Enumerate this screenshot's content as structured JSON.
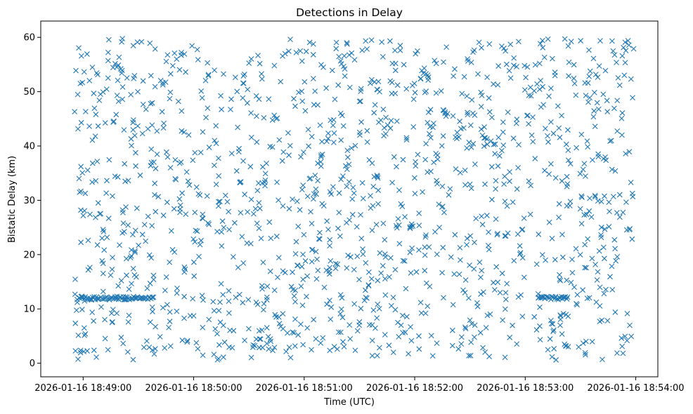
{
  "chart_data": {
    "type": "scatter",
    "title": "Detections in Delay",
    "xlabel": "Time (UTC)",
    "ylabel": "Bistatic Delay (km)",
    "xlim": [
      "2026-01-16 18:48:37",
      "2026-01-16 18:54:12"
    ],
    "ylim": [
      -2.5,
      63
    ],
    "x_ticks": [
      "2026-01-16 18:49:00",
      "2026-01-16 18:50:00",
      "2026-01-16 18:51:00",
      "2026-01-16 18:52:00",
      "2026-01-16 18:53:00",
      "2026-01-16 18:54:00"
    ],
    "y_ticks": [
      0,
      10,
      20,
      30,
      40,
      50,
      60
    ],
    "marker": "x",
    "color": "#1f77b4",
    "grid": false,
    "x_range": [
      "2026-01-16 18:48:55",
      "2026-01-16 18:53:59"
    ],
    "y_range": [
      0.6,
      59.9
    ],
    "clusters": [
      {
        "x_start": "2026-01-16 18:48:57",
        "x_end": "2026-01-16 18:49:38",
        "y": 12.0
      },
      {
        "x_start": "2026-01-16 18:53:07",
        "x_end": "2026-01-16 18:53:23",
        "y": 12.0
      }
    ],
    "point_count": 1500
  }
}
